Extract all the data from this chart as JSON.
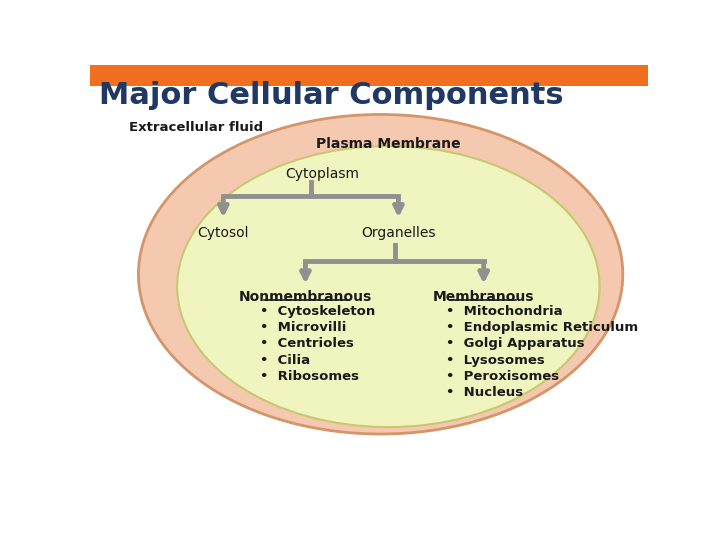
{
  "title": "Major Cellular Components",
  "title_color": "#1f3864",
  "title_fontsize": 22,
  "header_bar_color": "#f07020",
  "bg_color": "#ffffff",
  "extracellular_label": "Extracellular fluid",
  "plasma_label": "Plasma Membrane",
  "cytoplasm_label": "Cytoplasm",
  "cytosol_label": "Cytosol",
  "organelles_label": "Organelles",
  "nonmembranous_label": "Nonmembranous",
  "membranous_label": "Membranous",
  "nonmembranous_items": [
    "Cytoskeleton",
    "Microvilli",
    "Centrioles",
    "Cilia",
    "Ribosomes"
  ],
  "membranous_items": [
    "Mitochondria",
    "Endoplasmic Reticulum",
    "Golgi Apparatus",
    "Lysosomes",
    "Peroxisomes",
    "Nucleus"
  ],
  "outer_ellipse_color": "#f5c8b0",
  "outer_ellipse_edge": "#d4956a",
  "inner_ellipse_color": "#f0f5c0",
  "inner_ellipse_edge": "#c8c870",
  "arrow_color": "#909090",
  "text_color": "#1a1a1a",
  "item_fontsize": 9.5,
  "label_fontsize": 10
}
